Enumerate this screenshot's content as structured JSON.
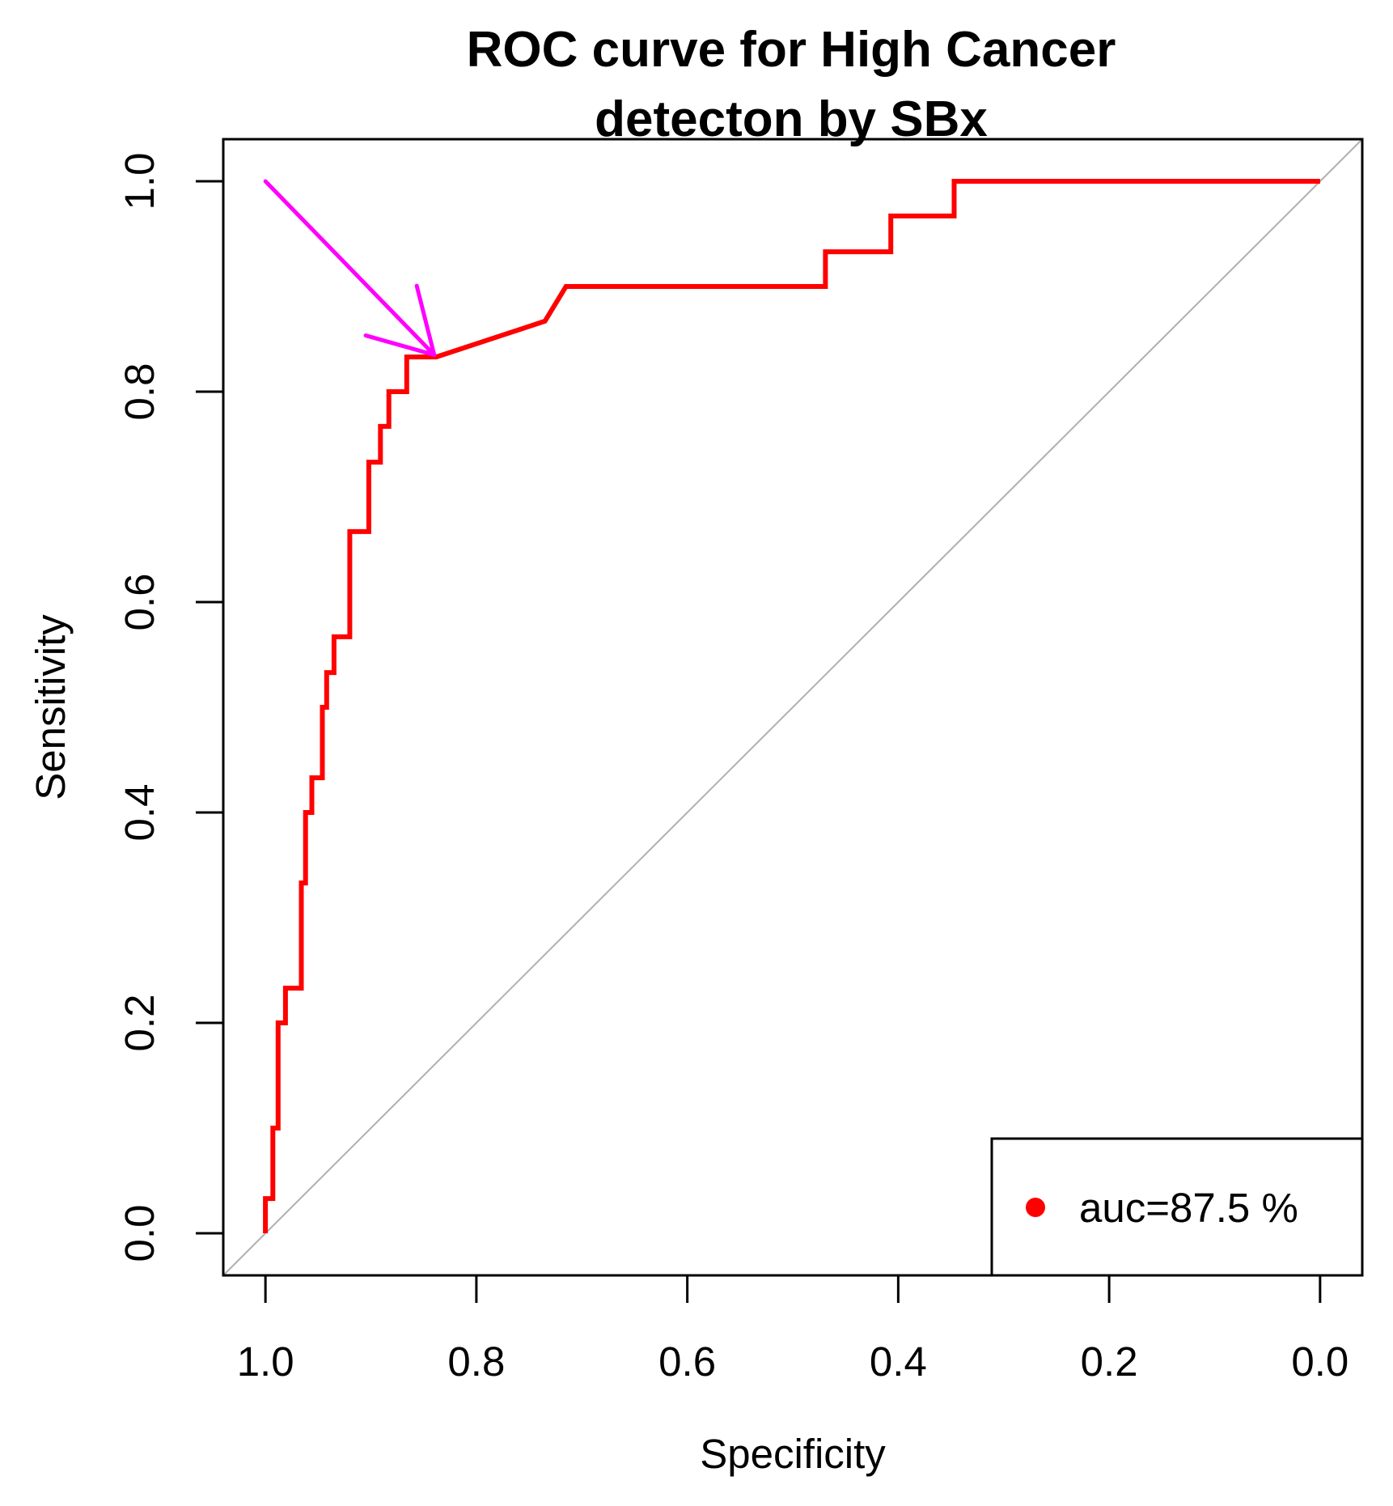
{
  "chart_data": {
    "type": "line",
    "title_lines": [
      "ROC curve for High Cancer",
      "detecton by SBx"
    ],
    "xlabel": "Specificity",
    "ylabel": "Sensitivity",
    "xlim": [
      1.04,
      -0.04
    ],
    "ylim": [
      -0.04,
      1.04
    ],
    "x_ticks": [
      {
        "value": 1.0,
        "label": "1.0"
      },
      {
        "value": 0.8,
        "label": "0.8"
      },
      {
        "value": 0.6,
        "label": "0.6"
      },
      {
        "value": 0.4,
        "label": "0.4"
      },
      {
        "value": 0.2,
        "label": "0.2"
      },
      {
        "value": 0.0,
        "label": "0.0"
      }
    ],
    "y_ticks": [
      {
        "value": 0.0,
        "label": "0.0"
      },
      {
        "value": 0.2,
        "label": "0.2"
      },
      {
        "value": 0.4,
        "label": "0.4"
      },
      {
        "value": 0.6,
        "label": "0.6"
      },
      {
        "value": 0.8,
        "label": "0.8"
      },
      {
        "value": 1.0,
        "label": "1.0"
      }
    ],
    "reference_line": {
      "from": [
        1.0,
        0.0
      ],
      "to": [
        0.0,
        1.0
      ],
      "color": "#b0b0b0"
    },
    "series": [
      {
        "name": "auc=87.5 %",
        "color": "#ff0000",
        "specificity": [
          1.0,
          1.0,
          0.993,
          0.993,
          0.988,
          0.988,
          0.981,
          0.981,
          0.966,
          0.966,
          0.962,
          0.962,
          0.956,
          0.956,
          0.946,
          0.946,
          0.942,
          0.942,
          0.935,
          0.935,
          0.92,
          0.92,
          0.902,
          0.902,
          0.891,
          0.891,
          0.883,
          0.883,
          0.866,
          0.866,
          0.838,
          0.838,
          0.735,
          0.735,
          0.715,
          0.715,
          0.469,
          0.469,
          0.407,
          0.407,
          0.347,
          0.347,
          0.0
        ],
        "sensitivity": [
          0.0,
          0.033,
          0.033,
          0.1,
          0.1,
          0.2,
          0.2,
          0.233,
          0.233,
          0.333,
          0.333,
          0.4,
          0.4,
          0.433,
          0.433,
          0.5,
          0.5,
          0.533,
          0.533,
          0.567,
          0.567,
          0.667,
          0.667,
          0.733,
          0.733,
          0.767,
          0.767,
          0.8,
          0.8,
          0.833,
          0.833,
          0.833,
          0.867,
          0.867,
          0.9,
          0.9,
          0.9,
          0.933,
          0.933,
          0.967,
          0.967,
          1.0,
          1.0
        ]
      }
    ],
    "annotation": {
      "type": "arrow",
      "from": [
        1.0,
        1.0
      ],
      "to": [
        0.84,
        0.835
      ],
      "color": "#ff00ff"
    },
    "legend": {
      "position": "bottom-right",
      "entries": [
        {
          "label": "auc=87.5 %",
          "color": "#ff0000",
          "marker": "dot"
        }
      ]
    }
  }
}
